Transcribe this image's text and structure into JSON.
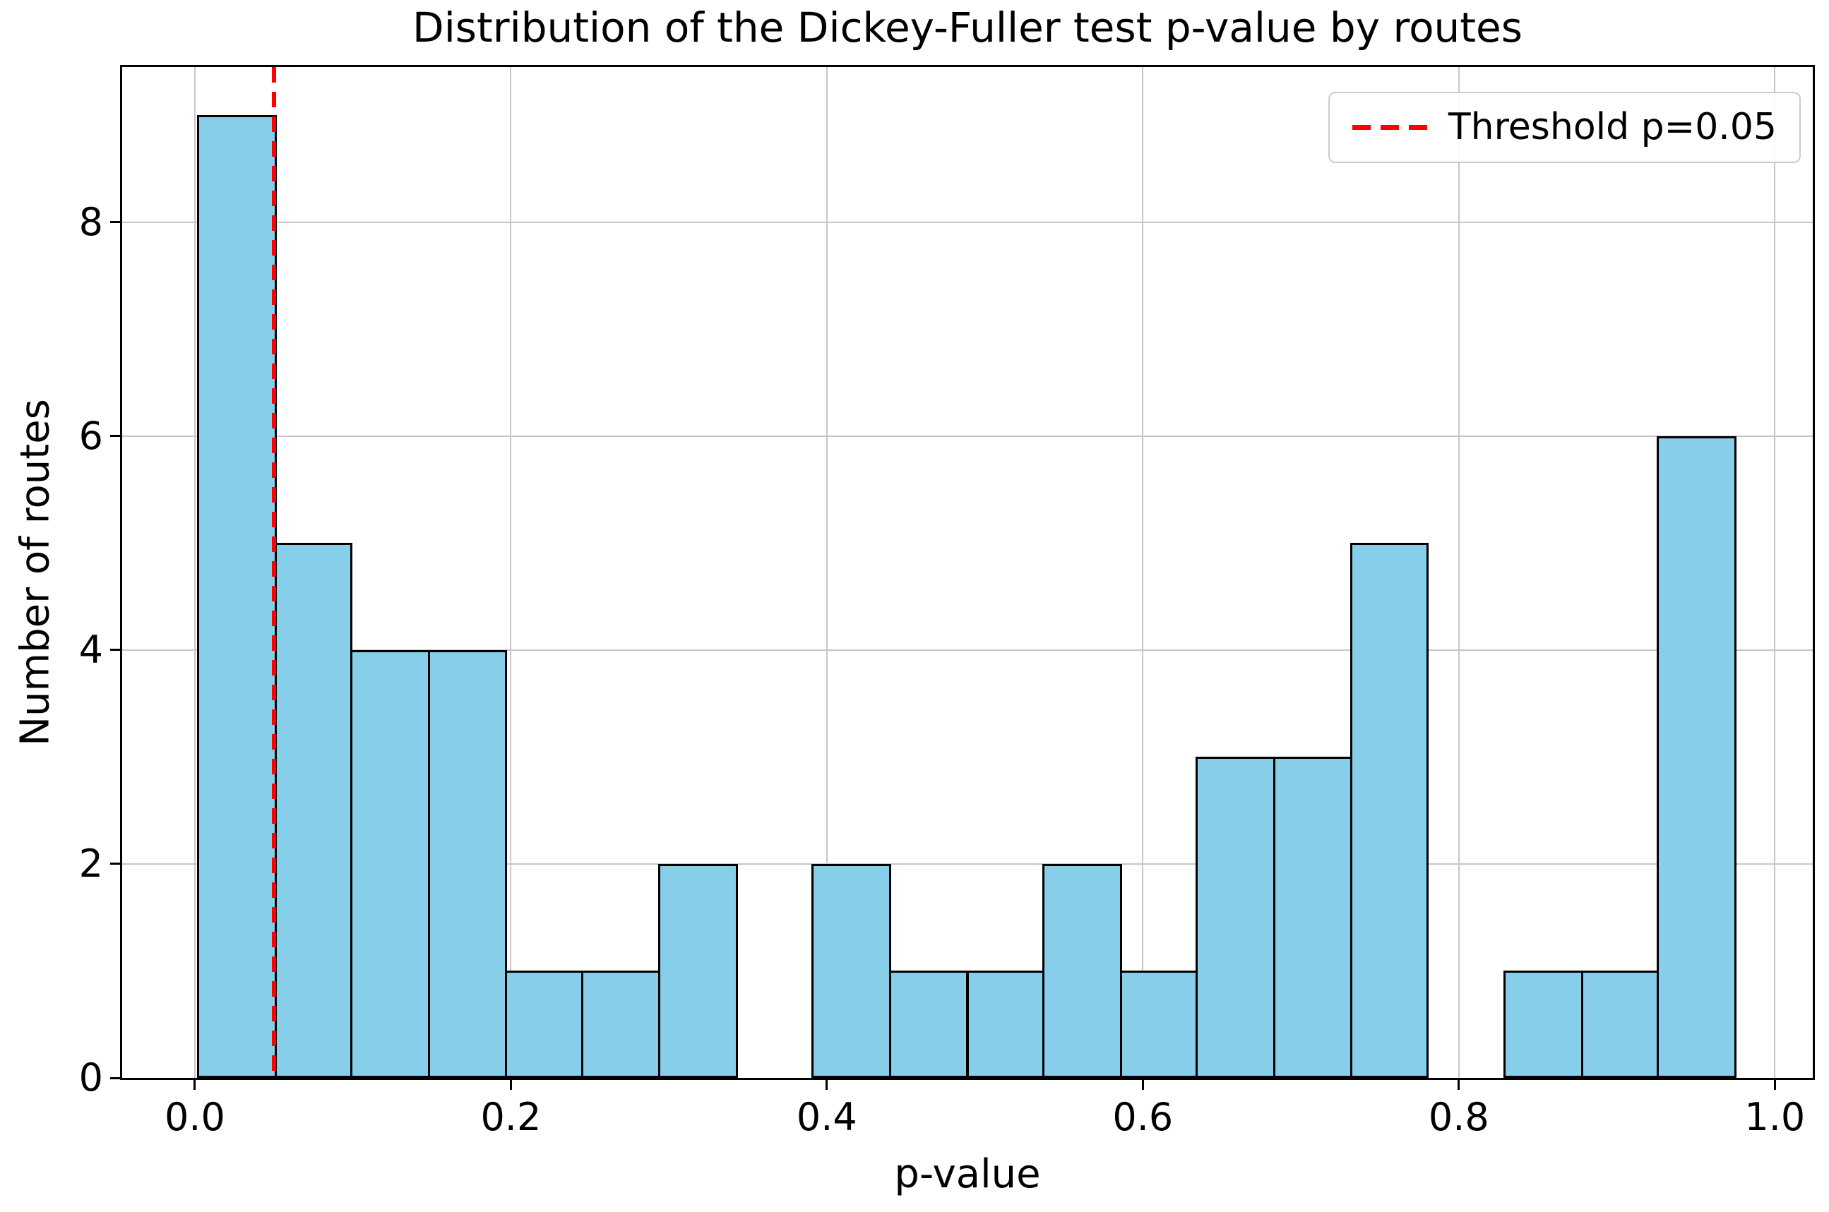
{
  "chart_data": {
    "type": "bar",
    "subtype": "histogram",
    "title": "Distribution of the Dickey-Fuller test p-value by routes",
    "xlabel": "p-value",
    "ylabel": "Number of routes",
    "bin_edges": [
      0.002,
      0.051,
      0.099,
      0.148,
      0.197,
      0.245,
      0.294,
      0.343,
      0.391,
      0.44,
      0.489,
      0.537,
      0.586,
      0.634,
      0.683,
      0.732,
      0.78,
      0.829,
      0.878,
      0.926,
      0.975
    ],
    "counts": [
      9,
      5,
      4,
      4,
      1,
      1,
      2,
      0,
      2,
      1,
      1,
      2,
      1,
      3,
      3,
      5,
      0,
      1,
      1,
      6
    ],
    "xticks": [
      0.0,
      0.2,
      0.4,
      0.6,
      0.8,
      1.0
    ],
    "xtick_labels": [
      "0.0",
      "0.2",
      "0.4",
      "0.6",
      "0.8",
      "1.0"
    ],
    "yticks": [
      0,
      2,
      4,
      6,
      8
    ],
    "ytick_labels": [
      "0",
      "2",
      "4",
      "6",
      "8"
    ],
    "xlim": [
      -0.046,
      1.024
    ],
    "ylim": [
      0,
      9.45
    ],
    "grid": true,
    "legend_position": "upper right",
    "threshold_line": {
      "value": 0.05,
      "style": "dashed",
      "color": "#ff0000",
      "legend_label": "Threshold p=0.05"
    },
    "colors": {
      "bar_fill": "#87ceeb",
      "bar_edge": "#000000",
      "grid": "#c6c6c6",
      "spine": "#000000",
      "legend_border": "#cccccc",
      "text": "#000000",
      "background": "#ffffff"
    }
  }
}
